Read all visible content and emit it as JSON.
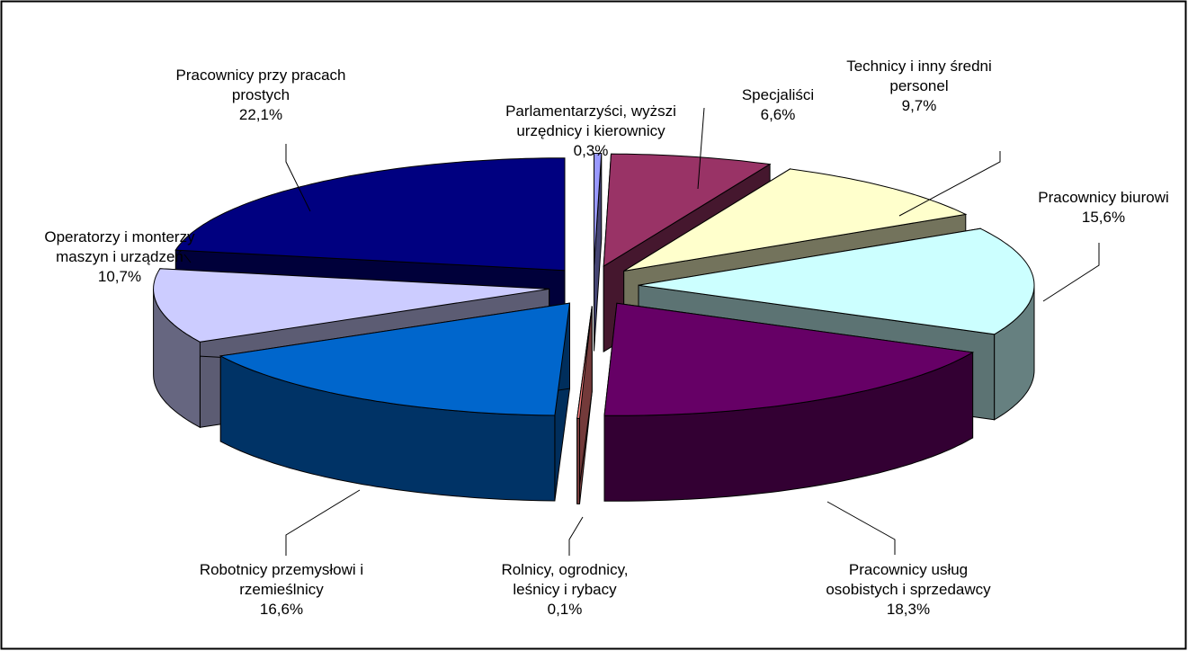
{
  "chart_data": {
    "type": "pie",
    "three_d": true,
    "exploded": true,
    "categories": [
      "Parlamentarzyści, wyższi urzędnicy i kierownicy",
      "Specjaliści",
      "Technicy i inny średni personel",
      "Pracownicy biurowi",
      "Pracownicy usług osobistych i sprzedawcy",
      "Rolnicy, ogrodnicy, leśnicy i rybacy",
      "Robotnicy przemysłowi i rzemieślnicy",
      "Operatorzy i monterzy maszyn i urządzeń",
      "Pracownicy przy pracach prostych"
    ],
    "values": [
      0.3,
      6.6,
      9.7,
      15.6,
      18.3,
      0.1,
      16.6,
      10.7,
      22.1
    ],
    "value_labels": [
      "0,3%",
      "6,6%",
      "9,7%",
      "15,6%",
      "18,3%",
      "0,1%",
      "16,6%",
      "10,7%",
      "22,1%"
    ],
    "colors": [
      "#9999ff",
      "#993366",
      "#ffffcc",
      "#ccffff",
      "#660066",
      "#ff8080",
      "#0066cc",
      "#ccccff",
      "#000080"
    ]
  }
}
